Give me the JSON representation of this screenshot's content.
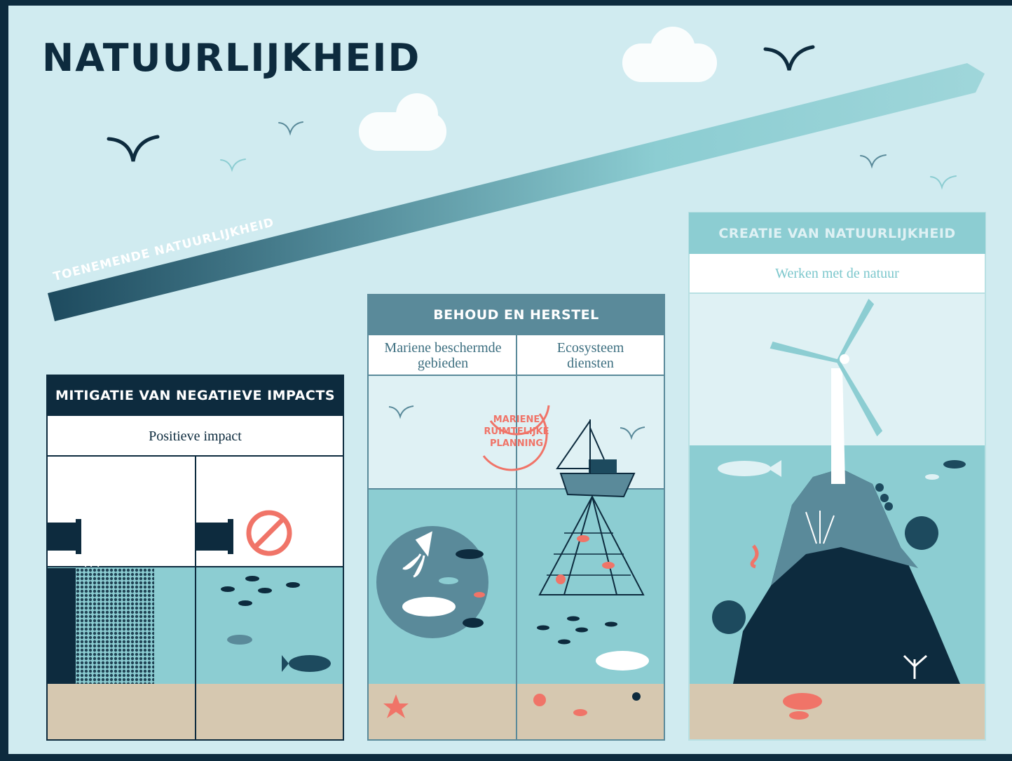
{
  "title": "NATUURLIJKHEID",
  "arrow": {
    "label": "TOENEMENDE NATUURLIJKHEID"
  },
  "panels": [
    {
      "title": "MITIGATIE VAN NEGATIEVE IMPACTS",
      "subtitle": "Positieve impact"
    },
    {
      "title": "BEHOUD EN HERSTEL",
      "columns": [
        "Mariene beschermde gebieden",
        "Ecosysteem diensten"
      ],
      "badge": "MARIENE RUIMTELIJKE PLANNING"
    },
    {
      "title": "CREATIE VAN NATUURLIJKHEID",
      "subtitle": "Werken met de natuur"
    }
  ]
}
